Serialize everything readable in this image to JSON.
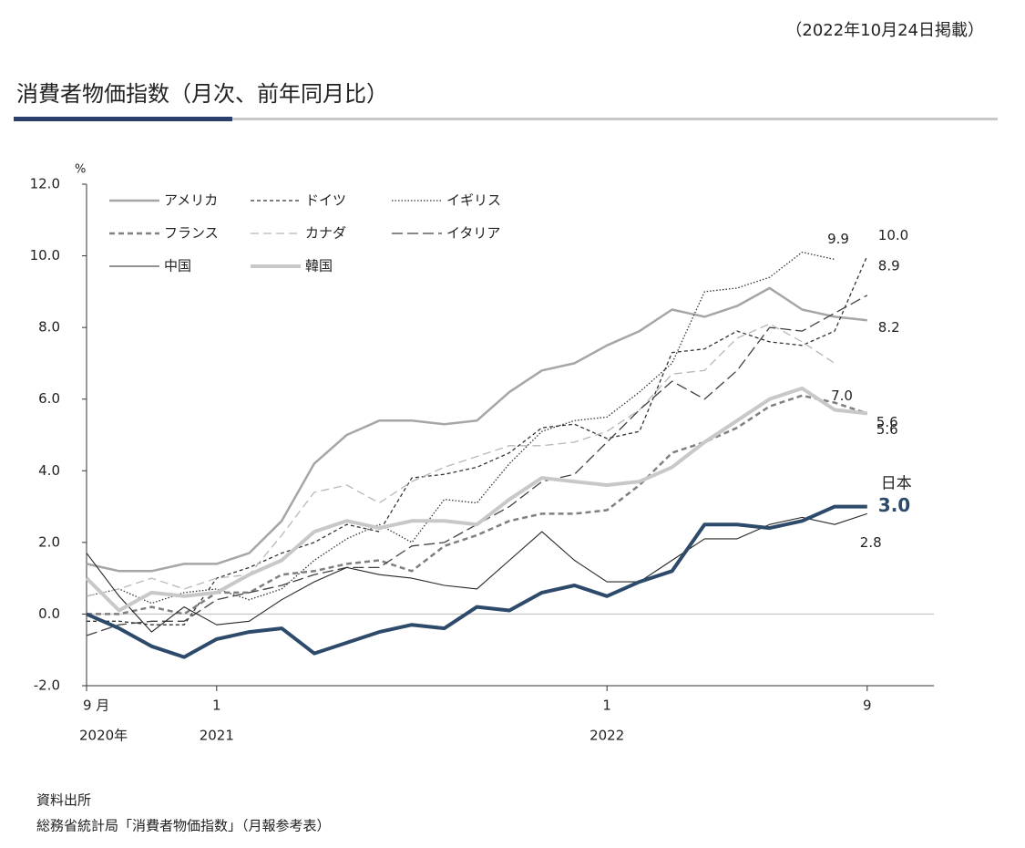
{
  "published": "（2022年10月24日掲載）",
  "heading": "消費者物価指数（月次、前年同月比）",
  "source_title": "資料出所",
  "source": "総務省統計局「消費者物価指数」（月報参考表）",
  "chart_data": {
    "type": "line",
    "y_unit": "%",
    "categories": [
      "9 月",
      null,
      null,
      null,
      "1",
      null,
      null,
      null,
      null,
      null,
      null,
      null,
      null,
      null,
      null,
      null,
      "1",
      null,
      null,
      null,
      null,
      null,
      null,
      null,
      "9"
    ],
    "year_labels": [
      {
        "index": 0,
        "label": "2020年"
      },
      {
        "index": 4,
        "label": "2021"
      },
      {
        "index": 16,
        "label": "2022"
      }
    ],
    "ylim": [
      -2,
      12
    ],
    "yticks": [
      {
        "value": -2,
        "label": "-2.0"
      },
      {
        "value": 0,
        "label": "0.0"
      },
      {
        "value": 2,
        "label": "2.0"
      },
      {
        "value": 4,
        "label": "4.0"
      },
      {
        "value": 6,
        "label": "6.0"
      },
      {
        "value": 8,
        "label": "8.0"
      },
      {
        "value": 10,
        "label": "10.0"
      },
      {
        "value": 12,
        "label": "12.0"
      }
    ],
    "series": [
      {
        "name": "アメリカ",
        "color": "#a6a6a6",
        "width": 2.5,
        "dash": "",
        "end_label": "8.2",
        "values": [
          1.4,
          1.2,
          1.2,
          1.4,
          1.4,
          1.7,
          2.6,
          4.2,
          5.0,
          5.4,
          5.4,
          5.3,
          5.4,
          6.2,
          6.8,
          7.0,
          7.5,
          7.9,
          8.5,
          8.3,
          8.6,
          9.1,
          8.5,
          8.3,
          8.2
        ]
      },
      {
        "name": "ドイツ",
        "color": "#333333",
        "width": 1.3,
        "dash": "4,3",
        "end_label": "10.0",
        "values": [
          -0.2,
          -0.2,
          -0.3,
          -0.3,
          1.0,
          1.3,
          1.7,
          2.0,
          2.5,
          2.3,
          3.8,
          3.9,
          4.1,
          4.5,
          5.2,
          5.3,
          4.9,
          5.1,
          7.3,
          7.4,
          7.9,
          7.6,
          7.5,
          7.9,
          10.0
        ]
      },
      {
        "name": "イギリス",
        "color": "#333333",
        "width": 1.3,
        "dash": "1.5,2",
        "end_label": "9.9",
        "values": [
          0.5,
          0.7,
          0.3,
          0.6,
          0.7,
          0.4,
          0.7,
          1.5,
          2.1,
          2.5,
          2.0,
          3.2,
          3.1,
          4.2,
          5.1,
          5.4,
          5.5,
          6.2,
          7.0,
          9.0,
          9.1,
          9.4,
          10.1,
          9.9,
          null
        ]
      },
      {
        "name": "フランス",
        "color": "#7f7f7f",
        "width": 2.5,
        "dash": "6,4",
        "end_label": "5.6",
        "values": [
          0.0,
          0.0,
          0.2,
          0.0,
          0.6,
          0.6,
          1.1,
          1.2,
          1.4,
          1.5,
          1.2,
          1.9,
          2.2,
          2.6,
          2.8,
          2.8,
          2.9,
          3.6,
          4.5,
          4.8,
          5.2,
          5.8,
          6.1,
          5.9,
          5.6
        ]
      },
      {
        "name": "カナダ",
        "color": "#b8b8b8",
        "width": 1.3,
        "dash": "9,5",
        "end_label": "7.0",
        "values": [
          0.5,
          0.7,
          1.0,
          0.7,
          1.0,
          1.1,
          2.2,
          3.4,
          3.6,
          3.1,
          3.7,
          4.1,
          4.4,
          4.7,
          4.7,
          4.8,
          5.1,
          5.7,
          6.7,
          6.8,
          7.7,
          8.1,
          7.6,
          7.0,
          null
        ]
      },
      {
        "name": "イタリア",
        "color": "#404040",
        "width": 1.3,
        "dash": "12,5",
        "end_label": "8.9",
        "values": [
          -0.6,
          -0.3,
          -0.2,
          -0.2,
          0.4,
          0.6,
          0.8,
          1.1,
          1.3,
          1.3,
          1.9,
          2.0,
          2.5,
          3.0,
          3.7,
          3.9,
          4.8,
          5.7,
          6.5,
          6.0,
          6.8,
          8.0,
          7.9,
          8.4,
          8.9
        ]
      },
      {
        "name": "中国",
        "color": "#262626",
        "width": 1.1,
        "dash": "",
        "end_label": "2.8",
        "values": [
          1.7,
          0.5,
          -0.5,
          0.2,
          -0.3,
          -0.2,
          0.4,
          0.9,
          1.3,
          1.1,
          1.0,
          0.8,
          0.7,
          1.5,
          2.3,
          1.5,
          0.9,
          0.9,
          1.5,
          2.1,
          2.1,
          2.5,
          2.7,
          2.5,
          2.8
        ]
      },
      {
        "name": "韓国",
        "color": "#c8c8c8",
        "width": 4,
        "dash": "",
        "end_label": "5.6",
        "values": [
          1.0,
          0.1,
          0.6,
          0.5,
          0.6,
          1.1,
          1.5,
          2.3,
          2.6,
          2.4,
          2.6,
          2.6,
          2.5,
          3.2,
          3.8,
          3.7,
          3.6,
          3.7,
          4.1,
          4.8,
          5.4,
          6.0,
          6.3,
          5.7,
          5.6
        ]
      },
      {
        "name": "日本",
        "color": "#2e4a6b",
        "width": 4,
        "dash": "",
        "end_label": "3.0",
        "in_legend": false,
        "values": [
          0.0,
          -0.4,
          -0.9,
          -1.2,
          -0.7,
          -0.5,
          -0.4,
          -1.1,
          -0.8,
          -0.5,
          -0.3,
          -0.4,
          0.2,
          0.1,
          0.6,
          0.8,
          0.5,
          0.9,
          1.2,
          2.5,
          2.5,
          2.4,
          2.6,
          3.0,
          3.0
        ]
      }
    ]
  }
}
